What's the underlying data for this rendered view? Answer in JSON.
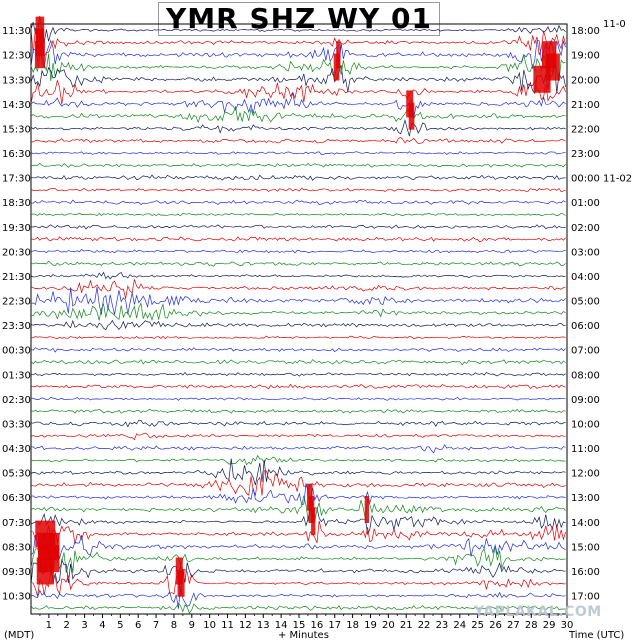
{
  "chart_data": {
    "type": "line",
    "title": "YMR SHZ WY 01",
    "top_right_date": "11-0",
    "xlabel": "+ Minutes",
    "left_axis_label": "(MDT)",
    "right_axis_label": "Time (UTC)",
    "x_ticks": [
      "1",
      "2",
      "3",
      "4",
      "5",
      "6",
      "7",
      "8",
      "9",
      "10",
      "11",
      "12",
      "13",
      "14",
      "15",
      "16",
      "17",
      "18",
      "19",
      "20",
      "21",
      "22",
      "23",
      "24",
      "25",
      "26",
      "27",
      "28",
      "29",
      "30"
    ],
    "xlim": [
      0,
      30
    ],
    "rows_per_hour": 2,
    "left_hour_labels": [
      "11:30",
      "12:30",
      "13:30",
      "14:30",
      "15:30",
      "16:30",
      "17:30",
      "18:30",
      "19:30",
      "20:30",
      "21:30",
      "22:30",
      "23:30",
      "00:30",
      "01:30",
      "02:30",
      "03:30",
      "04:30",
      "05:30",
      "06:30",
      "07:30",
      "08:30",
      "09:30",
      "10:30"
    ],
    "right_hour_labels": [
      "18:00",
      "19:00",
      "20:00",
      "21:00",
      "22:00",
      "23:00",
      "00:00 11-02",
      "01:00",
      "02:00",
      "03:00",
      "04:00",
      "05:00",
      "06:00",
      "07:00",
      "08:00",
      "09:00",
      "10:00",
      "11:00",
      "12:00",
      "13:00",
      "14:00",
      "15:00",
      "16:00",
      "17:00"
    ],
    "series_colors": [
      "#0b1a5c",
      "#e00000",
      "#1f2fe0",
      "#0f8a1a"
    ],
    "clip_color": "#e00000",
    "grid": false
  },
  "watermark": "YAPLAKAL.COM"
}
